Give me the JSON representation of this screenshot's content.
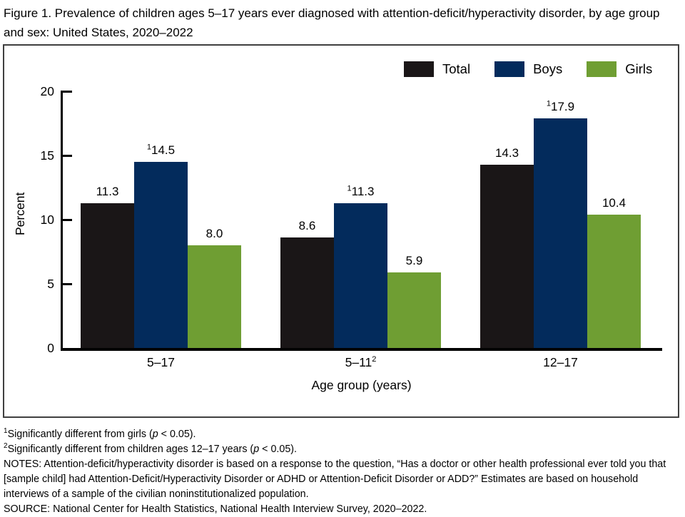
{
  "chart_data": {
    "type": "bar",
    "title": "Figure 1. Prevalence of children ages 5–17 years ever diagnosed with attention-deficit/hyperactivity disorder, by age group and sex: United States, 2020–2022",
    "xlabel": "Age group (years)",
    "ylabel": "Percent",
    "ylim": [
      0,
      20
    ],
    "yticks": [
      0,
      5,
      10,
      15,
      20
    ],
    "grid": false,
    "legend_position": "top-right",
    "categories": [
      {
        "label": "5–17",
        "sup": ""
      },
      {
        "label": "5–11",
        "sup": "2"
      },
      {
        "label": "12–17",
        "sup": ""
      }
    ],
    "series": [
      {
        "name": "Total",
        "color": "#1a1617",
        "values": [
          11.3,
          8.6,
          14.3
        ],
        "value_labels": [
          "11.3",
          "8.6",
          "14.3"
        ],
        "label_sups": [
          "",
          "",
          ""
        ]
      },
      {
        "name": "Boys",
        "color": "#032b5c",
        "values": [
          14.5,
          11.3,
          17.9
        ],
        "value_labels": [
          "14.5",
          "11.3",
          "17.9"
        ],
        "label_sups": [
          "1",
          "1",
          "1"
        ]
      },
      {
        "name": "Girls",
        "color": "#6f9e33",
        "values": [
          8.0,
          5.9,
          10.4
        ],
        "value_labels": [
          "8.0",
          "5.9",
          "10.4"
        ],
        "label_sups": [
          "",
          "",
          ""
        ]
      }
    ]
  },
  "footnotes": [
    {
      "sup": "1",
      "pre": "Significantly different from girls (",
      "italic": "p",
      "post": " < 0.05)."
    },
    {
      "sup": "2",
      "pre": "Significantly different from children ages 12–17 years (",
      "italic": "p",
      "post": " < 0.05)."
    },
    {
      "sup": "",
      "pre": "NOTES: Attention-deficit/hyperactivity disorder is based on a response to the question, “Has a doctor or other health professional ever told you that [sample child] had Attention-Deficit/Hyperactivity Disorder or ADHD or Attention-Deficit Disorder or ADD?” Estimates are based on household interviews of a sample of the civilian noninstitutionalized population.",
      "italic": "",
      "post": ""
    },
    {
      "sup": "",
      "pre": "SOURCE: National Center for Health Statistics, National Health Interview Survey, 2020–2022.",
      "italic": "",
      "post": ""
    }
  ]
}
